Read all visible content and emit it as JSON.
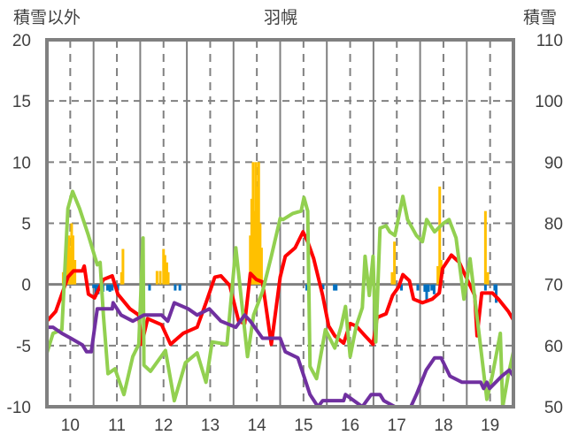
{
  "chart_data": {
    "type": "line",
    "title": "羽幌",
    "ylabel_left": "積雪以外",
    "ylabel_right": "積雪",
    "xlim": [
      9.5,
      19.5
    ],
    "ylim_left": [
      -10,
      20
    ],
    "ylim_right": [
      50,
      110
    ],
    "x_ticks": [
      "10",
      "11",
      "12",
      "13",
      "14",
      "15",
      "16",
      "17",
      "18",
      "19"
    ],
    "y_ticks_left": [
      "20",
      "15",
      "10",
      "5",
      "0",
      "-5",
      "-10"
    ],
    "y_ticks_right": [
      "110",
      "100",
      "90",
      "80",
      "70",
      "60",
      "50"
    ],
    "grid": true,
    "colors": {
      "red": "#ff0000",
      "green": "#92d050",
      "purple": "#7030a0",
      "orange": "#ffc000",
      "blue": "#0070c0",
      "frame": "#808080"
    },
    "series": [
      {
        "name": "red",
        "axis": "left",
        "type": "line",
        "points": [
          [
            9.5,
            -3
          ],
          [
            9.69,
            -2.2
          ],
          [
            9.95,
            0.6
          ],
          [
            10.07,
            1.1
          ],
          [
            10.26,
            1.1
          ],
          [
            10.3,
            1.5
          ],
          [
            10.39,
            -0.8
          ],
          [
            10.52,
            -1.1
          ],
          [
            10.71,
            0.4
          ],
          [
            10.9,
            0.7
          ],
          [
            11.02,
            -0.8
          ],
          [
            11.28,
            -2
          ],
          [
            11.47,
            -2.5
          ],
          [
            11.53,
            -4.9
          ],
          [
            11.66,
            -2.8
          ],
          [
            11.96,
            -3.3
          ],
          [
            12.15,
            -4.9
          ],
          [
            12.42,
            -4
          ],
          [
            12.72,
            -3.5
          ],
          [
            12.91,
            -1.5
          ],
          [
            13.1,
            0.6
          ],
          [
            13.23,
            0.7
          ],
          [
            13.42,
            -0.1
          ],
          [
            13.61,
            -3
          ],
          [
            13.74,
            -3.2
          ],
          [
            13.86,
            0.9
          ],
          [
            13.99,
            0.4
          ],
          [
            14.12,
            0.2
          ],
          [
            14.31,
            -4.9
          ],
          [
            14.5,
            0.6
          ],
          [
            14.61,
            2.3
          ],
          [
            14.82,
            3
          ],
          [
            14.99,
            4.3
          ],
          [
            15.09,
            3.5
          ],
          [
            15.22,
            2.1
          ],
          [
            15.41,
            -0.9
          ],
          [
            15.54,
            -3.4
          ],
          [
            15.67,
            -4.2
          ],
          [
            15.86,
            -4.8
          ],
          [
            16.0,
            -3.2
          ],
          [
            16.13,
            -3.4
          ],
          [
            16.32,
            -4.2
          ],
          [
            16.49,
            -4.9
          ],
          [
            16.58,
            -2.7
          ],
          [
            16.77,
            -2.4
          ],
          [
            16.91,
            -0.9
          ],
          [
            17.04,
            -0.2
          ],
          [
            17.13,
            0.8
          ],
          [
            17.27,
            0.3
          ],
          [
            17.36,
            -1.2
          ],
          [
            17.55,
            -1.5
          ],
          [
            17.76,
            -1.2
          ],
          [
            17.91,
            -0.7
          ],
          [
            17.98,
            1.3
          ],
          [
            18.17,
            2.4
          ],
          [
            18.34,
            1.8
          ],
          [
            18.46,
            0.8
          ],
          [
            18.67,
            -0.9
          ],
          [
            18.72,
            -4.2
          ],
          [
            18.82,
            -0.7
          ],
          [
            19.05,
            -0.7
          ],
          [
            19.18,
            -1.2
          ],
          [
            19.39,
            -2.2
          ],
          [
            19.5,
            -2.9
          ]
        ]
      },
      {
        "name": "green",
        "axis": "left",
        "type": "line",
        "points": [
          [
            9.5,
            -5.6
          ],
          [
            9.63,
            -4
          ],
          [
            9.82,
            -3.7
          ],
          [
            9.95,
            6.2
          ],
          [
            10.05,
            7.6
          ],
          [
            10.2,
            6.2
          ],
          [
            10.39,
            4
          ],
          [
            10.58,
            1.6
          ],
          [
            10.64,
            1.8
          ],
          [
            10.71,
            -2.5
          ],
          [
            10.81,
            -7.3
          ],
          [
            10.96,
            -6.9
          ],
          [
            11.15,
            -9
          ],
          [
            11.34,
            -5.9
          ],
          [
            11.47,
            -4.9
          ],
          [
            11.56,
            3.8
          ],
          [
            11.58,
            -6.6
          ],
          [
            11.72,
            -7.1
          ],
          [
            12.04,
            -5.4
          ],
          [
            12.23,
            -9.5
          ],
          [
            12.47,
            -6.4
          ],
          [
            12.72,
            -5.6
          ],
          [
            12.91,
            -8
          ],
          [
            13.04,
            -4.7
          ],
          [
            13.36,
            -4.9
          ],
          [
            13.55,
            3
          ],
          [
            13.8,
            -5.9
          ],
          [
            13.93,
            -2.5
          ],
          [
            14.12,
            -0.6
          ],
          [
            14.31,
            2.3
          ],
          [
            14.5,
            5.4
          ],
          [
            14.56,
            5.3
          ],
          [
            14.77,
            5.8
          ],
          [
            14.95,
            6
          ],
          [
            15.01,
            7.1
          ],
          [
            15.09,
            6
          ],
          [
            15.14,
            -6.7
          ],
          [
            15.28,
            -7.7
          ],
          [
            15.47,
            -3.7
          ],
          [
            15.67,
            -5.2
          ],
          [
            15.81,
            -3.4
          ],
          [
            15.9,
            -1.8
          ],
          [
            16.0,
            -5.9
          ],
          [
            16.13,
            -3.4
          ],
          [
            16.26,
            -1.9
          ],
          [
            16.32,
            2.3
          ],
          [
            16.41,
            -0.9
          ],
          [
            16.49,
            2.3
          ],
          [
            16.55,
            -4.7
          ],
          [
            16.64,
            4.6
          ],
          [
            16.77,
            4.8
          ],
          [
            16.85,
            4.3
          ],
          [
            16.96,
            4
          ],
          [
            17.13,
            7.2
          ],
          [
            17.23,
            5.3
          ],
          [
            17.42,
            4
          ],
          [
            17.55,
            3.5
          ],
          [
            17.64,
            5.3
          ],
          [
            17.81,
            4.3
          ],
          [
            18.0,
            5
          ],
          [
            18.12,
            5.3
          ],
          [
            18.27,
            3.8
          ],
          [
            18.44,
            -1.2
          ],
          [
            18.57,
            2.1
          ],
          [
            18.69,
            -1.7
          ],
          [
            18.8,
            -5.2
          ],
          [
            18.93,
            -9.4
          ],
          [
            19.05,
            -7.4
          ],
          [
            19.22,
            -4
          ],
          [
            19.27,
            -10
          ],
          [
            19.39,
            -7.4
          ],
          [
            19.5,
            -5.5
          ]
        ]
      },
      {
        "name": "purple",
        "axis": "right",
        "type": "line",
        "points": [
          [
            9.5,
            63
          ],
          [
            9.63,
            63
          ],
          [
            9.82,
            62
          ],
          [
            10.01,
            61.2
          ],
          [
            10.26,
            60.1
          ],
          [
            10.35,
            59
          ],
          [
            10.45,
            59
          ],
          [
            10.58,
            66
          ],
          [
            10.9,
            66
          ],
          [
            10.92,
            67
          ],
          [
            11.09,
            65
          ],
          [
            11.34,
            64
          ],
          [
            11.58,
            65
          ],
          [
            11.96,
            65
          ],
          [
            12.09,
            64
          ],
          [
            12.23,
            67
          ],
          [
            12.53,
            66
          ],
          [
            12.72,
            65
          ],
          [
            12.98,
            66
          ],
          [
            13.23,
            64
          ],
          [
            13.55,
            63
          ],
          [
            13.74,
            65
          ],
          [
            13.86,
            64
          ],
          [
            14.12,
            61.2
          ],
          [
            14.5,
            61.2
          ],
          [
            14.61,
            59
          ],
          [
            14.88,
            58
          ],
          [
            15.14,
            52
          ],
          [
            15.31,
            50
          ],
          [
            15.41,
            51
          ],
          [
            15.86,
            51
          ],
          [
            15.9,
            52
          ],
          [
            16.26,
            50
          ],
          [
            16.45,
            52
          ],
          [
            16.64,
            52
          ],
          [
            16.72,
            51
          ],
          [
            16.96,
            50
          ],
          [
            17.3,
            50
          ],
          [
            17.42,
            52
          ],
          [
            17.63,
            56
          ],
          [
            17.81,
            58
          ],
          [
            17.95,
            58
          ],
          [
            18.14,
            55
          ],
          [
            18.4,
            54
          ],
          [
            18.8,
            54
          ],
          [
            18.86,
            53
          ],
          [
            18.93,
            54
          ],
          [
            18.99,
            53
          ],
          [
            19.25,
            55
          ],
          [
            19.41,
            56
          ],
          [
            19.5,
            55
          ]
        ]
      },
      {
        "name": "orange",
        "axis": "left",
        "type": "bar",
        "points": [
          [
            9.85,
            1
          ],
          [
            9.9,
            3
          ],
          [
            9.93,
            4
          ],
          [
            9.97,
            4
          ],
          [
            10.0,
            3
          ],
          [
            10.03,
            5
          ],
          [
            10.06,
            4
          ],
          [
            10.1,
            2
          ],
          [
            11.1,
            1
          ],
          [
            11.13,
            2.9
          ],
          [
            11.86,
            1.1
          ],
          [
            11.93,
            1.1
          ],
          [
            12.0,
            2.9
          ],
          [
            12.03,
            2.4
          ],
          [
            12.07,
            1.8
          ],
          [
            12.1,
            1
          ],
          [
            13.86,
            4
          ],
          [
            13.89,
            7
          ],
          [
            13.92,
            10
          ],
          [
            13.95,
            6
          ],
          [
            13.98,
            10
          ],
          [
            14.01,
            8
          ],
          [
            14.04,
            10
          ],
          [
            14.07,
            5
          ],
          [
            14.1,
            3
          ],
          [
            16.9,
            1
          ],
          [
            16.95,
            3.5
          ],
          [
            17.88,
            1.5
          ],
          [
            17.92,
            8
          ],
          [
            17.95,
            2
          ],
          [
            18.9,
            6
          ],
          [
            18.95,
            1
          ]
        ]
      },
      {
        "name": "blue",
        "axis": "left",
        "type": "bar",
        "points": [
          [
            10.5,
            -0.3
          ],
          [
            10.55,
            -1
          ],
          [
            10.6,
            -0.8
          ],
          [
            10.7,
            -0.6
          ],
          [
            10.8,
            -0.5
          ],
          [
            10.85,
            -0.6
          ],
          [
            10.9,
            -0.5
          ],
          [
            11.02,
            -0.5
          ],
          [
            11.7,
            -0.5
          ],
          [
            12.25,
            -0.5
          ],
          [
            12.35,
            -0.5
          ],
          [
            15.07,
            -0.5
          ],
          [
            15.42,
            -0.4
          ],
          [
            15.66,
            -0.5
          ],
          [
            15.7,
            -0.5
          ],
          [
            17.1,
            -0.5
          ],
          [
            17.45,
            -0.5
          ],
          [
            17.6,
            -0.6
          ],
          [
            17.64,
            -1.5
          ],
          [
            17.68,
            -0.6
          ],
          [
            17.75,
            -0.5
          ],
          [
            17.8,
            -0.8
          ],
          [
            18.9,
            -0.5
          ],
          [
            19.1,
            -0.5
          ],
          [
            19.13,
            -1.5
          ]
        ]
      }
    ]
  }
}
